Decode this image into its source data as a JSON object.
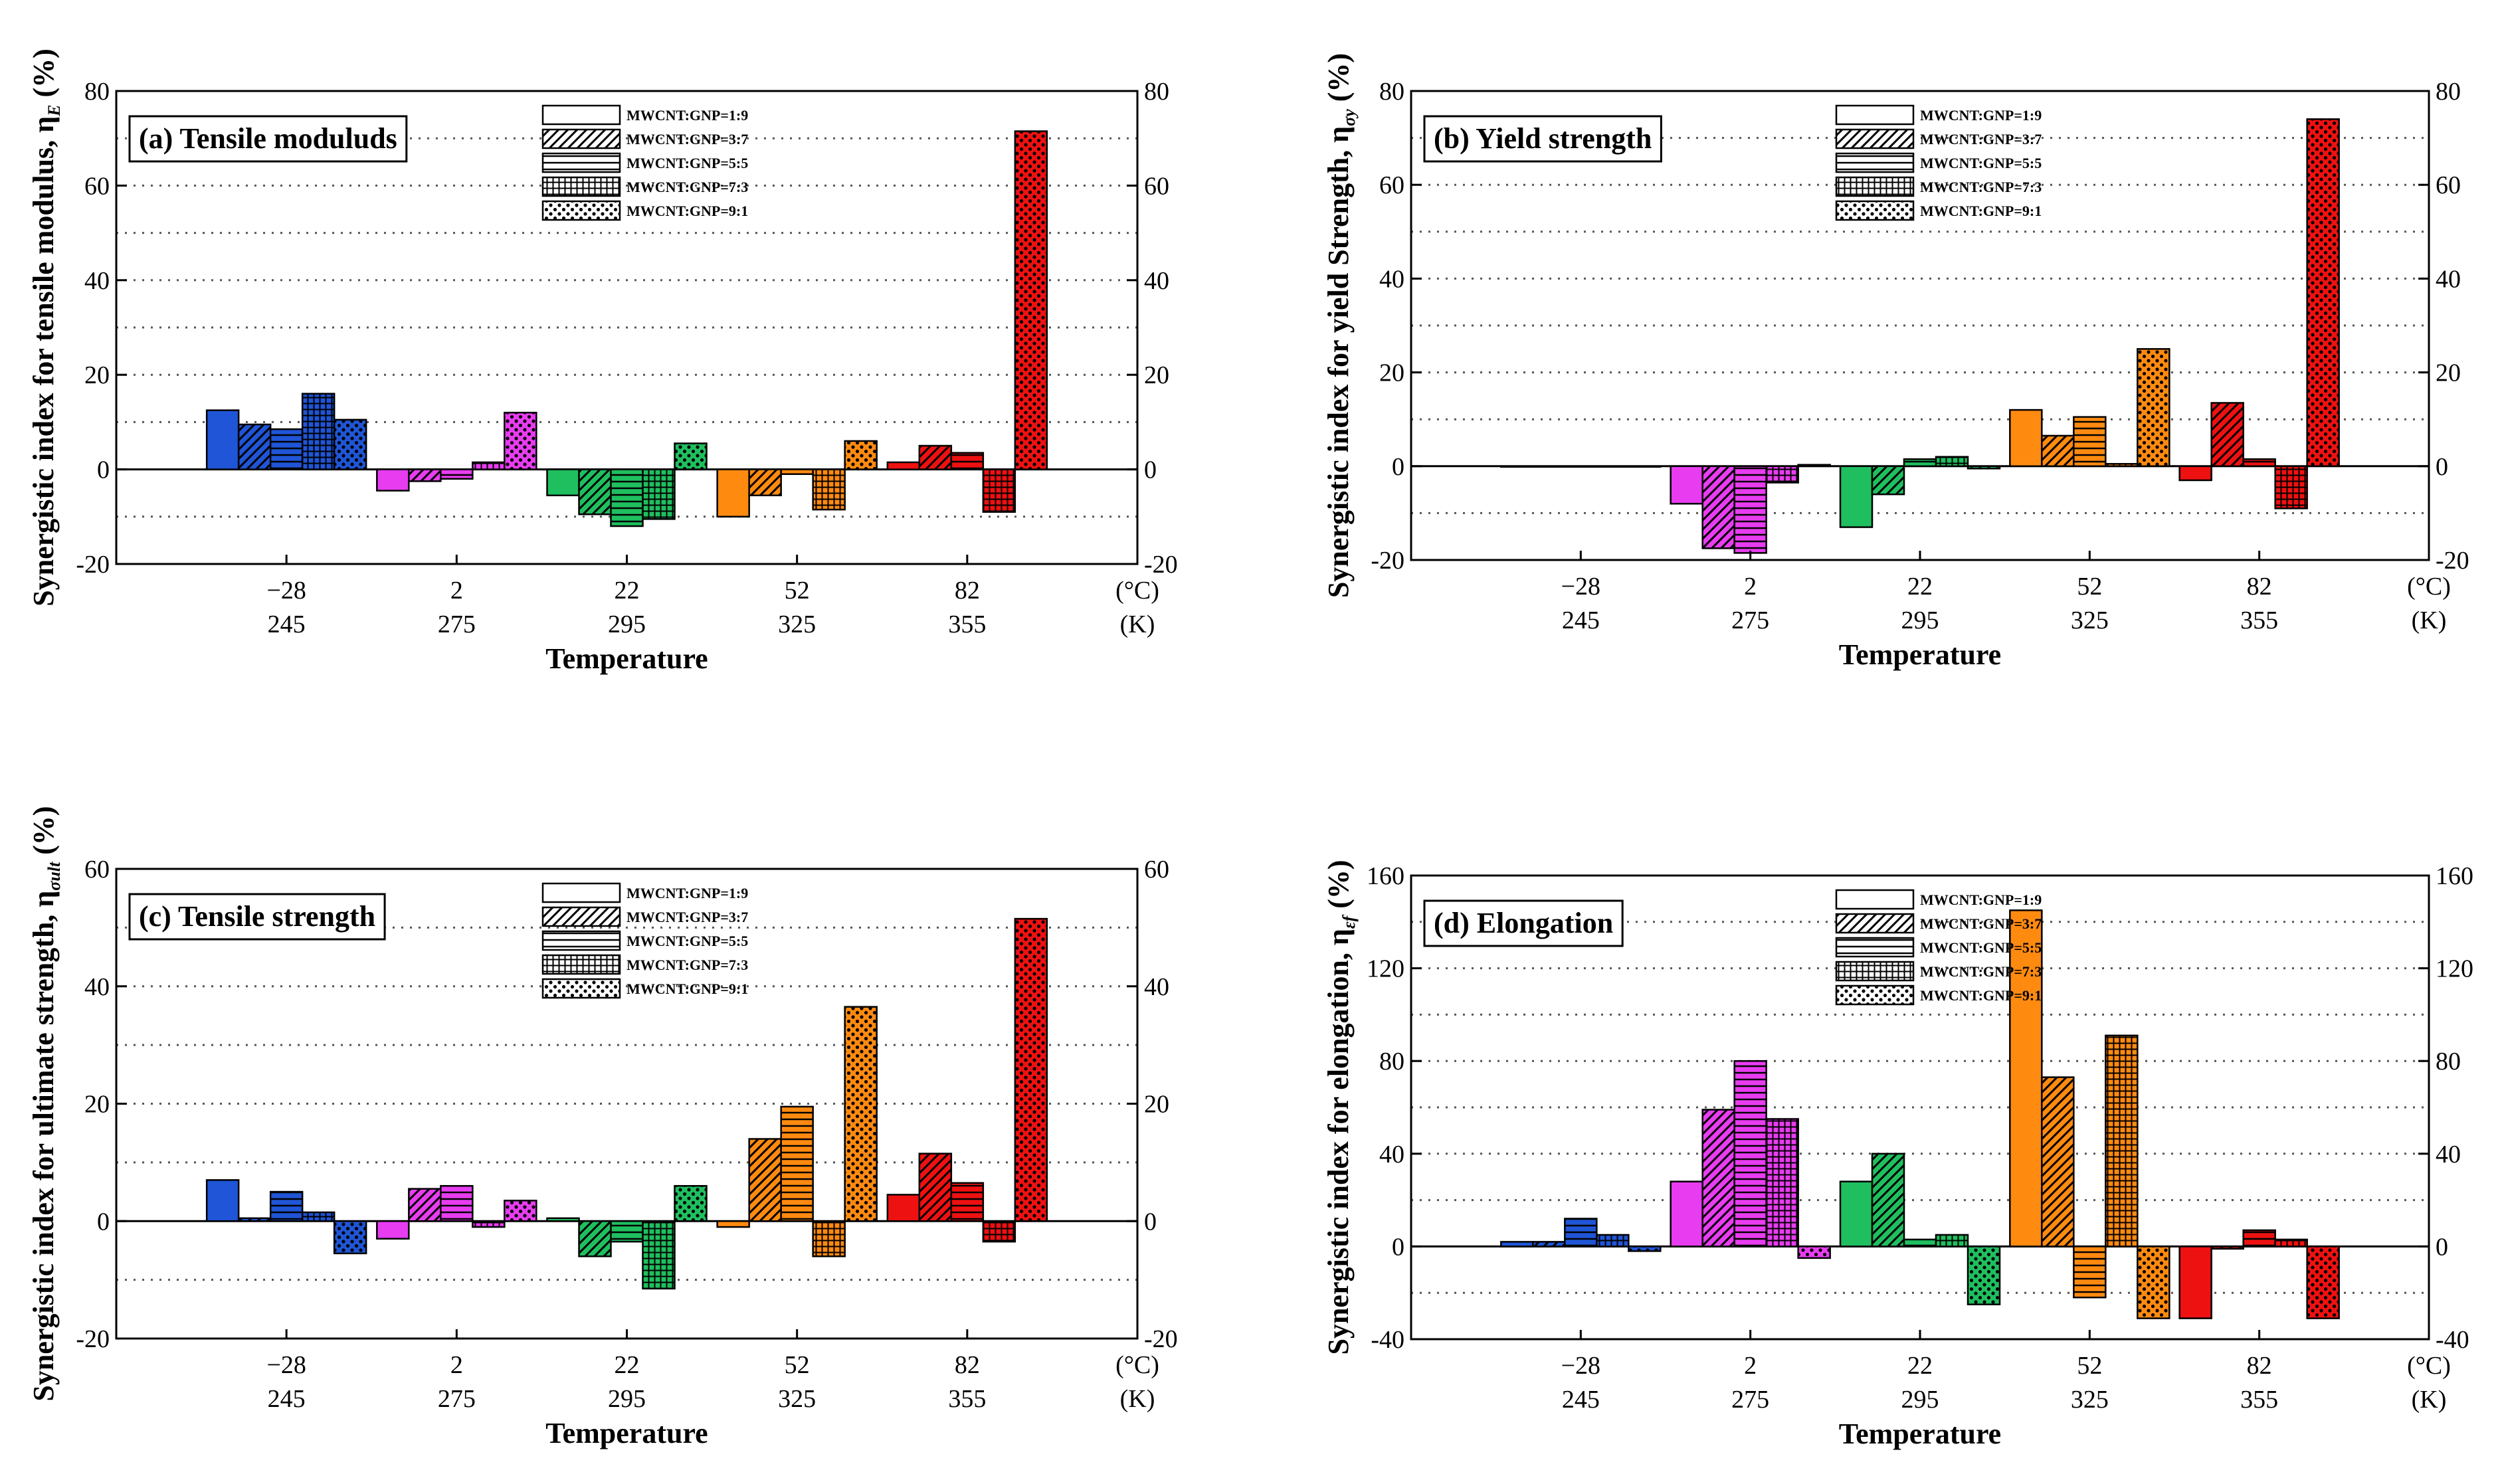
{
  "figure": {
    "xlabel": "Temperature",
    "unit_c": "(°C)",
    "unit_k": "(K)",
    "temps_c": [
      "−28",
      "2",
      "22",
      "52",
      "82"
    ],
    "temps_k": [
      "245",
      "275",
      "295",
      "325",
      "355"
    ],
    "group_colors": [
      "#1f55d6",
      "#e83cf0",
      "#1fbf5f",
      "#ff8a10",
      "#ee1111"
    ],
    "legend": [
      "MWCNT:GNP=1:9",
      "MWCNT:GNP=3:7",
      "MWCNT:GNP=5:5",
      "MWCNT:GNP=7:3",
      "MWCNT:GNP=9:1"
    ],
    "legend_patterns": [
      "solid",
      "diagonal",
      "horizontal",
      "grid",
      "dots"
    ]
  },
  "chart_data": [
    {
      "type": "bar",
      "panel": "a",
      "title": "(a) Tensile moduluds",
      "ylabel_main": "Synergistic index for tensile modulus, η",
      "ylabel_sub": "E",
      "ylabel_unit": " (%)",
      "ylim": [
        -20,
        80
      ],
      "yticks": [
        -20,
        0,
        20,
        40,
        60,
        80
      ],
      "grid_step": 10,
      "categories": [
        "−28 / 245",
        "2 / 275",
        "22 / 295",
        "52 / 325",
        "82 / 355"
      ],
      "series": [
        {
          "name": "MWCNT:GNP=1:9",
          "values": [
            12.5,
            -4.5,
            -5.5,
            -10,
            1.5
          ]
        },
        {
          "name": "MWCNT:GNP=3:7",
          "values": [
            9.5,
            -2.5,
            -9.5,
            -5.5,
            5
          ]
        },
        {
          "name": "MWCNT:GNP=5:5",
          "values": [
            8.5,
            -2,
            -12,
            -1,
            3.5
          ]
        },
        {
          "name": "MWCNT:GNP=7:3",
          "values": [
            16,
            1.5,
            -10.5,
            -8.5,
            -9
          ]
        },
        {
          "name": "MWCNT:GNP=9:1",
          "values": [
            10.5,
            12,
            5.5,
            6,
            71.5
          ]
        }
      ]
    },
    {
      "type": "bar",
      "panel": "b",
      "title": "(b) Yield strength",
      "ylabel_main": "Synergistic index for yield Strength, η",
      "ylabel_sub": "σy",
      "ylabel_unit": " (%)",
      "ylim": [
        -20,
        80
      ],
      "yticks": [
        -20,
        0,
        20,
        40,
        60,
        80
      ],
      "grid_step": 10,
      "categories": [
        "−28 / 245",
        "2 / 275",
        "22 / 295",
        "52 / 325",
        "82 / 355"
      ],
      "series": [
        {
          "name": "MWCNT:GNP=1:9",
          "values": [
            0,
            -8,
            -13,
            12,
            -3
          ]
        },
        {
          "name": "MWCNT:GNP=3:7",
          "values": [
            0,
            -17.5,
            -6,
            6.5,
            13.5
          ]
        },
        {
          "name": "MWCNT:GNP=5:5",
          "values": [
            0,
            -18.5,
            1.5,
            10.5,
            1.5
          ]
        },
        {
          "name": "MWCNT:GNP=7:3",
          "values": [
            0,
            -3.5,
            2,
            0.5,
            -9
          ]
        },
        {
          "name": "MWCNT:GNP=9:1",
          "values": [
            0,
            0.3,
            -0.5,
            25,
            74
          ]
        }
      ]
    },
    {
      "type": "bar",
      "panel": "c",
      "title": "(c) Tensile strength",
      "ylabel_main": "Synergistic index for ultimate strength, η",
      "ylabel_sub": "σult",
      "ylabel_unit": " (%)",
      "ylim": [
        -20,
        60
      ],
      "yticks": [
        -20,
        0,
        20,
        40,
        60
      ],
      "grid_step": 10,
      "categories": [
        "−28 / 245",
        "2 / 275",
        "22 / 295",
        "52 / 325",
        "82 / 355"
      ],
      "series": [
        {
          "name": "MWCNT:GNP=1:9",
          "values": [
            7,
            -3,
            0.5,
            -1,
            4.5
          ]
        },
        {
          "name": "MWCNT:GNP=3:7",
          "values": [
            0.5,
            5.5,
            -6,
            14,
            11.5
          ]
        },
        {
          "name": "MWCNT:GNP=5:5",
          "values": [
            5,
            6,
            -3.5,
            19.5,
            6.5
          ]
        },
        {
          "name": "MWCNT:GNP=7:3",
          "values": [
            1.5,
            -1,
            -11.5,
            -6,
            -3.5
          ]
        },
        {
          "name": "MWCNT:GNP=9:1",
          "values": [
            -5.5,
            3.5,
            6,
            36.5,
            51.5
          ]
        }
      ]
    },
    {
      "type": "bar",
      "panel": "d",
      "title": "(d) Elongation",
      "ylabel_main": "Synergistic index for elongation, η",
      "ylabel_sub": "εf",
      "ylabel_unit": " (%)",
      "ylim": [
        -40,
        160
      ],
      "yticks": [
        -40,
        0,
        40,
        80,
        120,
        160
      ],
      "grid_step": 20,
      "categories": [
        "−28 / 245",
        "2 / 275",
        "22 / 295",
        "52 / 325",
        "82 / 355"
      ],
      "series": [
        {
          "name": "MWCNT:GNP=1:9",
          "values": [
            2,
            28,
            28,
            145,
            -31
          ]
        },
        {
          "name": "MWCNT:GNP=3:7",
          "values": [
            2,
            59,
            40,
            73,
            -1
          ]
        },
        {
          "name": "MWCNT:GNP=5:5",
          "values": [
            12,
            80,
            3,
            -22,
            7
          ]
        },
        {
          "name": "MWCNT:GNP=7:3",
          "values": [
            5,
            55,
            5,
            91,
            3
          ]
        },
        {
          "name": "MWCNT:GNP=9:1",
          "values": [
            -2,
            -5,
            -25,
            -31,
            -31
          ]
        }
      ]
    }
  ]
}
